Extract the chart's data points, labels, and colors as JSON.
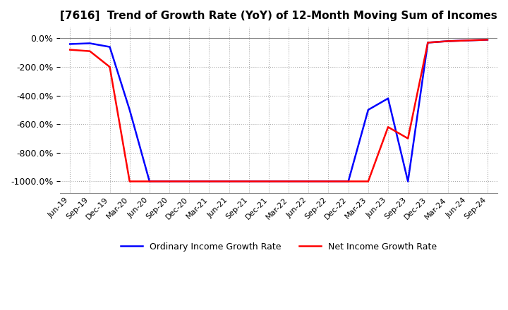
{
  "title": "[7616]  Trend of Growth Rate (YoY) of 12-Month Moving Sum of Incomes",
  "title_fontsize": 11,
  "background_color": "#ffffff",
  "plot_background_color": "#ffffff",
  "grid_color": "#aaaaaa",
  "legend": [
    "Ordinary Income Growth Rate",
    "Net Income Growth Rate"
  ],
  "line_colors": [
    "#0000ff",
    "#ff0000"
  ],
  "ylim": [
    -1080,
    80
  ],
  "yticks": [
    0,
    -200,
    -400,
    -600,
    -800,
    -1000
  ],
  "x_labels": [
    "Jun-19",
    "Sep-19",
    "Dec-19",
    "Mar-20",
    "Jun-20",
    "Sep-20",
    "Dec-20",
    "Mar-21",
    "Jun-21",
    "Sep-21",
    "Dec-21",
    "Mar-22",
    "Jun-22",
    "Sep-22",
    "Dec-22",
    "Mar-23",
    "Jun-23",
    "Sep-23",
    "Dec-23",
    "Mar-24",
    "Jun-24",
    "Sep-24"
  ],
  "ordinary_income": [
    -40,
    -35,
    -60,
    -500,
    -1000,
    -1000,
    -1000,
    -1000,
    -1000,
    -1000,
    -1000,
    -1000,
    -1000,
    -1000,
    -1000,
    -500,
    -420,
    -1000,
    -30,
    -20,
    -15,
    -10
  ],
  "net_income": [
    -80,
    -90,
    -200,
    -1000,
    -1000,
    -1000,
    -1000,
    -1000,
    -1000,
    -1000,
    -1000,
    -1000,
    -1000,
    -1000,
    -1000,
    -1000,
    -620,
    -700,
    -30,
    -20,
    -15,
    -10
  ]
}
